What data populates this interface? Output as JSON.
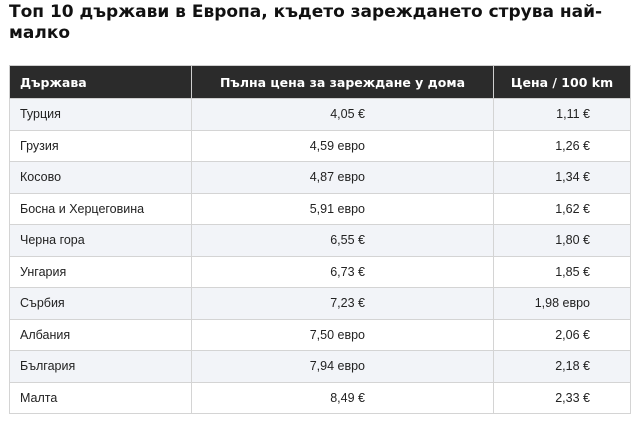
{
  "title": "Топ 10 държави в Европа, където зареждането струва най-малко",
  "table": {
    "headers": {
      "country": "Държава",
      "home_price": "Пълна цена за зареждане у дома",
      "per_100km": "Цена / 100 km"
    },
    "rows": [
      {
        "country": "Турция",
        "home_price": "4,05 €",
        "per_100km": "1,11 €"
      },
      {
        "country": "Грузия",
        "home_price": "4,59 евро",
        "per_100km": "1,26 €"
      },
      {
        "country": "Косово",
        "home_price": "4,87 евро",
        "per_100km": "1,34 €"
      },
      {
        "country": "Босна и Херцеговина",
        "home_price": "5,91 евро",
        "per_100km": "1,62 €"
      },
      {
        "country": "Черна гора",
        "home_price": "6,55 €",
        "per_100km": "1,80 €"
      },
      {
        "country": "Унгария",
        "home_price": "6,73 €",
        "per_100km": "1,85 €"
      },
      {
        "country": "Сърбия",
        "home_price": "7,23 €",
        "per_100km": "1,98 евро"
      },
      {
        "country": "Албания",
        "home_price": "7,50 евро",
        "per_100km": "2,06 €"
      },
      {
        "country": "България",
        "home_price": "7,94 евро",
        "per_100km": "2,18 €"
      },
      {
        "country": "Малта",
        "home_price": "8,49 €",
        "per_100km": "2,33 €"
      }
    ]
  },
  "colors": {
    "header_bg": "#2b2b2b",
    "header_text": "#ffffff",
    "row_alt_bg": "#f2f4f8",
    "border": "#d4d4d4"
  }
}
